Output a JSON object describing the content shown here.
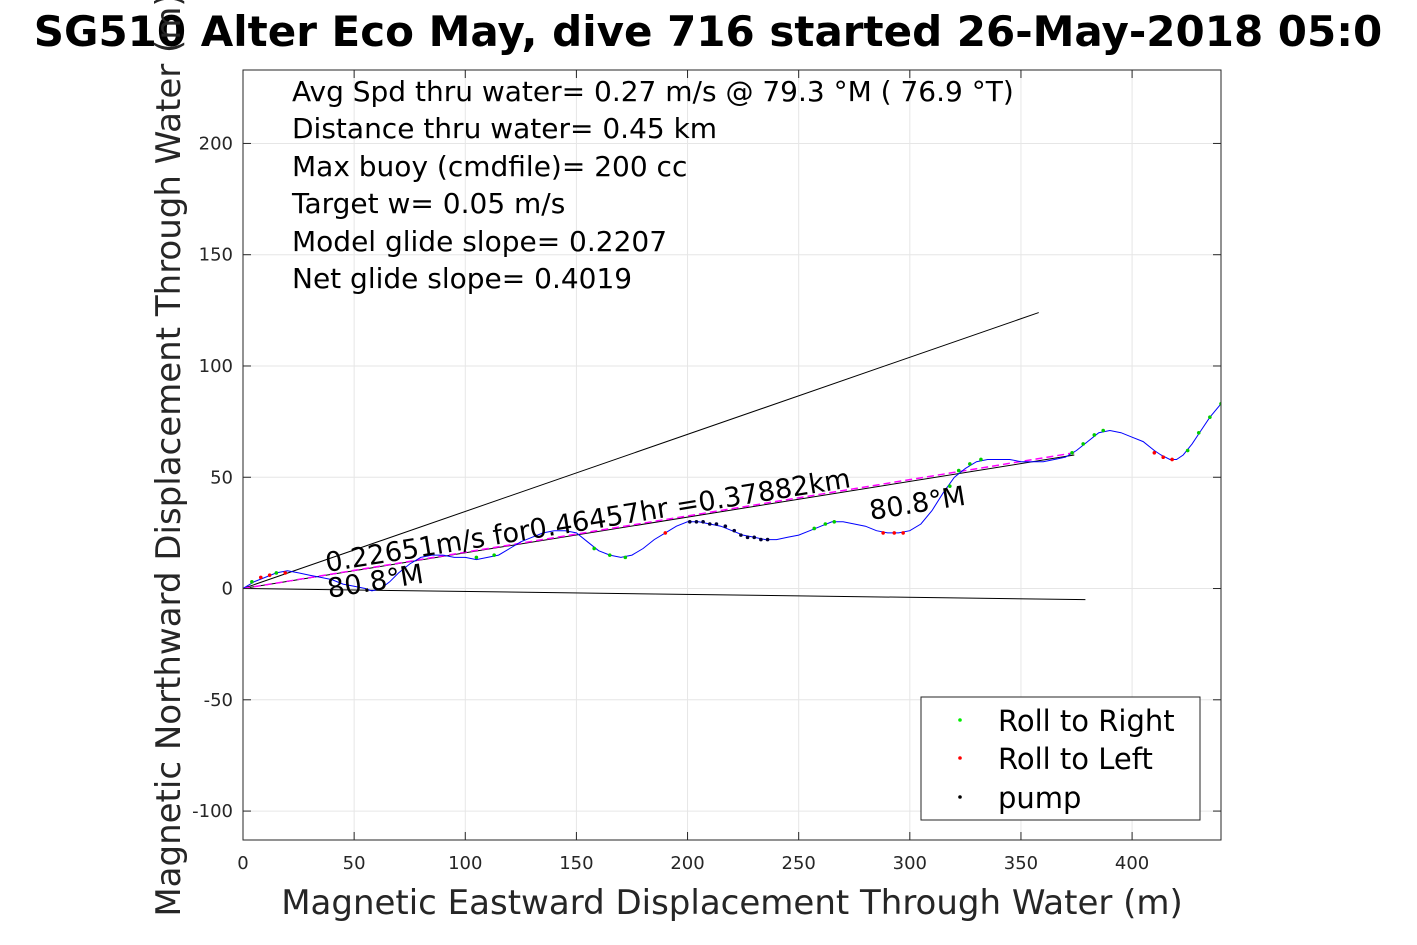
{
  "chart_data": {
    "type": "line",
    "title": "SG510 Alter Eco May, dive 716 started 26-May-2018 05:0",
    "xlabel": "Magnetic Eastward Displacement Through Water (m)",
    "ylabel": "Magnetic Northward Displacement Through Water (m)",
    "xlim": [
      0,
      440
    ],
    "ylim": [
      -113,
      233
    ],
    "xticks": [
      0,
      50,
      100,
      150,
      200,
      250,
      300,
      350,
      400
    ],
    "yticks": [
      -100,
      -50,
      0,
      50,
      100,
      150,
      200
    ],
    "grid": true,
    "info_lines": [
      "Avg Spd thru water=  0.27 m/s @  79.3 °M ( 76.9 °T)",
      "Distance thru water=  0.45 km",
      "Max buoy (cmdfile)= 200 cc",
      "Target w= 0.05 m/s",
      "Model glide slope= 0.2207",
      "Net glide slope= 0.4019"
    ],
    "legend": {
      "position": "bottom-right",
      "entries": [
        {
          "label": "Roll to Right",
          "color": "#00ee00"
        },
        {
          "label": "Roll to Left",
          "color": "#ff0000"
        },
        {
          "label": "pump",
          "color": "#000000"
        }
      ]
    },
    "annotations": {
      "net_track_label": "0.22651m/s for0.46457hr =0.37882km",
      "heading_label": "80.8°M"
    },
    "trajectory": {
      "color": "#0000ff",
      "points": [
        [
          0,
          0
        ],
        [
          5,
          3
        ],
        [
          10,
          5
        ],
        [
          15,
          7
        ],
        [
          20,
          8
        ],
        [
          25,
          7
        ],
        [
          30,
          6
        ],
        [
          35,
          5
        ],
        [
          40,
          4
        ],
        [
          45,
          2
        ],
        [
          50,
          1
        ],
        [
          55,
          0
        ],
        [
          58,
          -1
        ],
        [
          62,
          0
        ],
        [
          66,
          3
        ],
        [
          70,
          7
        ],
        [
          75,
          11
        ],
        [
          80,
          14
        ],
        [
          85,
          15
        ],
        [
          90,
          15
        ],
        [
          95,
          14
        ],
        [
          100,
          14
        ],
        [
          105,
          13
        ],
        [
          110,
          14
        ],
        [
          115,
          15
        ],
        [
          120,
          18
        ],
        [
          125,
          21
        ],
        [
          130,
          23
        ],
        [
          135,
          25
        ],
        [
          140,
          26
        ],
        [
          145,
          26
        ],
        [
          150,
          25
        ],
        [
          155,
          21
        ],
        [
          160,
          17
        ],
        [
          165,
          15
        ],
        [
          170,
          14
        ],
        [
          175,
          15
        ],
        [
          180,
          18
        ],
        [
          185,
          22
        ],
        [
          190,
          25
        ],
        [
          195,
          28
        ],
        [
          200,
          30
        ],
        [
          205,
          30
        ],
        [
          210,
          29
        ],
        [
          215,
          28
        ],
        [
          220,
          26
        ],
        [
          225,
          24
        ],
        [
          230,
          23
        ],
        [
          235,
          22
        ],
        [
          240,
          22
        ],
        [
          245,
          23
        ],
        [
          250,
          24
        ],
        [
          255,
          26
        ],
        [
          260,
          28
        ],
        [
          265,
          30
        ],
        [
          270,
          30
        ],
        [
          275,
          29
        ],
        [
          280,
          28
        ],
        [
          285,
          26
        ],
        [
          290,
          25
        ],
        [
          295,
          25
        ],
        [
          300,
          26
        ],
        [
          305,
          29
        ],
        [
          310,
          35
        ],
        [
          315,
          43
        ],
        [
          320,
          50
        ],
        [
          325,
          54
        ],
        [
          330,
          57
        ],
        [
          335,
          58
        ],
        [
          340,
          58
        ],
        [
          345,
          58
        ],
        [
          350,
          57
        ],
        [
          355,
          57
        ],
        [
          360,
          57
        ],
        [
          365,
          58
        ],
        [
          370,
          59
        ],
        [
          375,
          62
        ],
        [
          380,
          66
        ],
        [
          385,
          70
        ],
        [
          390,
          71
        ],
        [
          395,
          70
        ],
        [
          400,
          68
        ],
        [
          405,
          66
        ],
        [
          410,
          62
        ],
        [
          413,
          60
        ],
        [
          417,
          58
        ],
        [
          420,
          58
        ],
        [
          423,
          60
        ],
        [
          427,
          65
        ],
        [
          431,
          71
        ],
        [
          435,
          77
        ],
        [
          440,
          83
        ]
      ]
    },
    "markers": {
      "roll_right": [
        [
          4,
          3
        ],
        [
          15,
          7
        ],
        [
          105,
          14
        ],
        [
          113,
          15
        ],
        [
          158,
          18
        ],
        [
          165,
          15
        ],
        [
          172,
          14
        ],
        [
          257,
          27
        ],
        [
          262,
          29
        ],
        [
          266,
          30
        ],
        [
          318,
          46
        ],
        [
          322,
          53
        ],
        [
          327,
          56
        ],
        [
          332,
          58
        ],
        [
          373,
          61
        ],
        [
          378,
          65
        ],
        [
          383,
          69
        ],
        [
          387,
          71
        ],
        [
          425,
          62
        ],
        [
          430,
          70
        ],
        [
          435,
          77
        ],
        [
          440,
          83
        ]
      ],
      "roll_left": [
        [
          8,
          5
        ],
        [
          12,
          6
        ],
        [
          19,
          7
        ],
        [
          190,
          25
        ],
        [
          288,
          25
        ],
        [
          293,
          25
        ],
        [
          297,
          25
        ],
        [
          410,
          61
        ],
        [
          414,
          59
        ],
        [
          418,
          58
        ]
      ],
      "pump": [
        [
          201,
          30
        ],
        [
          204,
          30
        ],
        [
          207,
          30
        ],
        [
          210,
          29
        ],
        [
          213,
          29
        ],
        [
          217,
          28
        ],
        [
          221,
          26
        ],
        [
          224,
          24
        ],
        [
          227,
          23
        ],
        [
          230,
          23
        ],
        [
          233,
          22
        ],
        [
          236,
          22
        ]
      ]
    },
    "net_track": {
      "color": "#ff00ff",
      "from": [
        0,
        0
      ],
      "to": [
        374,
        61
      ]
    },
    "envelope_lines": [
      {
        "from": [
          0,
          0
        ],
        "to": [
          358,
          124
        ],
        "color": "#000000"
      },
      {
        "from": [
          0,
          0
        ],
        "to": [
          379,
          -5
        ],
        "color": "#000000"
      },
      {
        "from": [
          0,
          0
        ],
        "to": [
          374,
          60
        ],
        "color": "#000000"
      }
    ]
  }
}
